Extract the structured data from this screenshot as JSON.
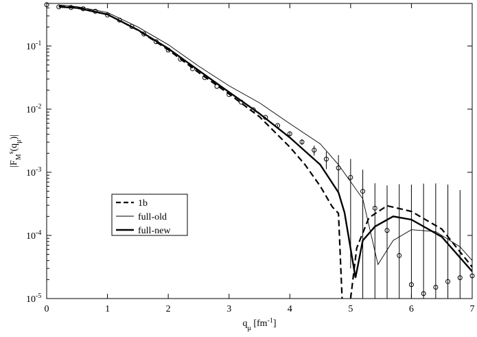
{
  "chart_data": {
    "type": "line",
    "log_y": true,
    "xlabel": [
      {
        "text": "q"
      },
      {
        "text": "μ",
        "position": "sub"
      },
      {
        "text": " [fm"
      },
      {
        "text": "-1",
        "position": "super"
      },
      {
        "text": "]"
      }
    ],
    "ylabel": [
      {
        "text": "|F"
      },
      {
        "text": "M",
        "position": "sub"
      },
      {
        "text": "s",
        "position": "super"
      },
      {
        "text": "(q"
      },
      {
        "text": "μ",
        "position": "sub"
      },
      {
        "text": ")|"
      }
    ],
    "xlim": [
      0,
      7
    ],
    "xticks": [
      0,
      1,
      2,
      3,
      4,
      5,
      6,
      7
    ],
    "ylim": [
      1e-05,
      0.472
    ],
    "yticks": [
      {
        "value": 1e-05,
        "label": "10",
        "exponent": "-5"
      },
      {
        "value": 0.0001,
        "label": "10",
        "exponent": "-4"
      },
      {
        "value": 0.001,
        "label": "10",
        "exponent": "-3"
      },
      {
        "value": 0.01,
        "label": "10",
        "exponent": "-2"
      },
      {
        "value": 0.1,
        "label": "10",
        "exponent": "-1"
      }
    ],
    "legend": "lower-left",
    "series": [
      {
        "name": "1b",
        "color": "#000000",
        "style": "dashed",
        "width": 2.2,
        "x": [
          0.2,
          0.5,
          1,
          1.5,
          2,
          2.5,
          3,
          3.5,
          4,
          4.25,
          4.5,
          4.7,
          4.8,
          4.86,
          null,
          5.0,
          5.1,
          5.3,
          5.6,
          6.0,
          6.5,
          7.0
        ],
        "values": [
          0.427,
          0.407,
          0.316,
          0.178,
          0.0871,
          0.038,
          0.0174,
          0.00759,
          0.00251,
          0.00132,
          0.000603,
          0.000282,
          0.000224,
          1e-05,
          null,
          1e-05,
          6.3e-05,
          0.00019,
          0.000295,
          0.00024,
          0.000126,
          3.16e-05
        ]
      },
      {
        "name": "full-old",
        "color": "#000000",
        "style": "solid",
        "width": 0.9,
        "x": [
          0.2,
          0.5,
          1,
          1.5,
          2,
          2.5,
          3,
          3.5,
          4,
          4.5,
          4.8,
          5.2,
          5.45,
          5.7,
          6.0,
          6.4,
          6.8,
          7.0
        ],
        "values": [
          0.447,
          0.42,
          0.339,
          0.2,
          0.105,
          0.048,
          0.0234,
          0.0126,
          0.0059,
          0.00282,
          0.00132,
          0.00038,
          3.47e-05,
          8.32e-05,
          0.000123,
          0.000115,
          6.6e-05,
          4e-05
        ]
      },
      {
        "name": "full-new",
        "color": "#000000",
        "style": "solid",
        "width": 2.4,
        "x": [
          0.2,
          0.5,
          1,
          1.5,
          2,
          2.5,
          3,
          3.5,
          4,
          4.5,
          4.8,
          4.9,
          5.08,
          5.2,
          5.4,
          5.7,
          6.0,
          6.5,
          7.0
        ],
        "values": [
          0.417,
          0.4,
          0.316,
          0.18,
          0.0912,
          0.041,
          0.0186,
          0.0085,
          0.00355,
          0.00132,
          0.00048,
          0.00023,
          2.14e-05,
          8.3e-05,
          0.000138,
          0.0002,
          0.000178,
          9.5e-05,
          2.69e-05
        ]
      }
    ],
    "points": {
      "color": "#000000",
      "x": [
        0,
        0.2,
        0.4,
        0.6,
        0.8,
        1.0,
        1.2,
        1.4,
        1.6,
        1.8,
        2.0,
        2.2,
        2.4,
        2.6,
        2.8,
        3.0,
        3.2,
        3.4,
        3.6,
        3.8,
        4.0,
        4.2,
        4.4,
        4.6,
        4.8,
        5.0,
        5.2,
        5.4,
        5.6,
        5.8,
        6.0,
        6.2,
        6.4,
        6.6,
        6.8,
        7.0
      ],
      "values": [
        0.45,
        0.417,
        0.407,
        0.389,
        0.355,
        0.309,
        0.257,
        0.204,
        0.155,
        0.117,
        0.0861,
        0.0617,
        0.0437,
        0.0316,
        0.0229,
        0.017,
        0.0129,
        0.00977,
        0.00741,
        0.0055,
        0.00407,
        0.00302,
        0.00224,
        0.00162,
        0.00117,
        0.00083,
        0.0005,
        0.00027,
        0.00012,
        4.8e-05,
        1.66e-05,
        1.2e-05,
        1.51e-05,
        1.86e-05,
        2.14e-05,
        2.29e-05
      ],
      "errors": [
        0,
        0,
        0,
        0,
        0,
        0,
        0,
        0,
        0,
        0,
        0,
        0,
        0,
        0,
        0,
        0,
        0,
        0,
        0.0002,
        0.0002,
        0.00025,
        0.0003,
        0.0004,
        0.0005,
        0.0007,
        0.0008,
        0.0006,
        0.0004,
        0.0005,
        0.0006,
        0.00062,
        0.00065,
        0.00065,
        0.00062,
        0.0005,
        0.0003
      ]
    }
  }
}
